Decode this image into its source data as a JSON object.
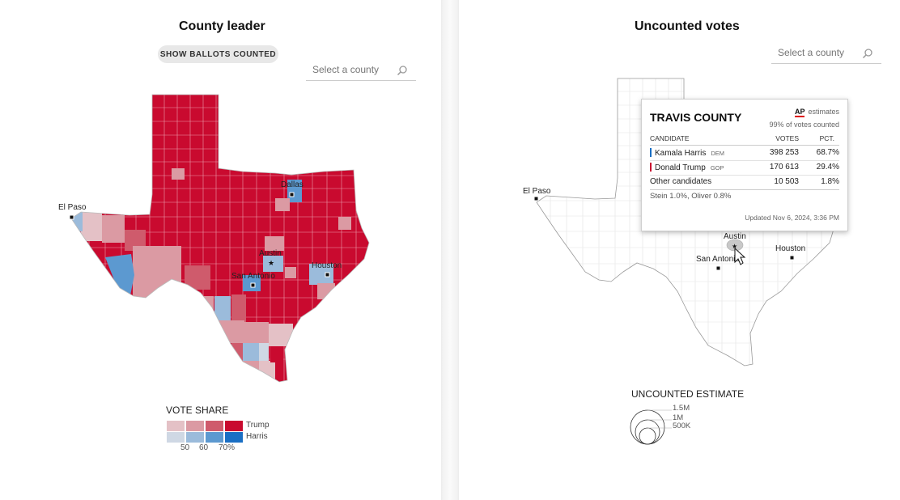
{
  "left": {
    "title": "County leader",
    "show_ballots_button": "SHOW BALLOTS COUNTED",
    "search_placeholder": "Select a county",
    "cities": {
      "el_paso": "El Paso",
      "dallas": "Dallas",
      "austin": "Austin",
      "houston": "Houston",
      "san_antonio": "San Antonio"
    },
    "legend": {
      "title": "VOTE SHARE",
      "trump_label": "Trump",
      "harris_label": "Harris",
      "trump_colors": [
        "#e4c1c6",
        "#db9aa3",
        "#cf5b6c",
        "#c90a2f"
      ],
      "harris_colors": [
        "#cfd8e4",
        "#9bbbdb",
        "#5c99d0",
        "#1a6fc4"
      ],
      "ticks": [
        "50",
        "60",
        "70%"
      ]
    }
  },
  "right": {
    "title": "Uncounted votes",
    "search_placeholder": "Select a county",
    "cities": {
      "el_paso": "El Paso",
      "austin": "Austin",
      "houston": "Houston",
      "san_antonio": "San Antonio"
    },
    "tooltip": {
      "county": "TRAVIS COUNTY",
      "ap_logo": "AP",
      "ap_label": "estimates",
      "pct_counted": "99% of votes counted",
      "headers": {
        "candidate": "CANDIDATE",
        "votes": "VOTES",
        "pct": "PCT."
      },
      "rows": [
        {
          "name": "Kamala Harris",
          "party": "DEM",
          "votes": "398 253",
          "pct": "68.7%",
          "color": "#1a6fc4"
        },
        {
          "name": "Donald Trump",
          "party": "GOP",
          "votes": "170 613",
          "pct": "29.4%",
          "color": "#c90a2f"
        },
        {
          "name": "Other candidates",
          "party": "",
          "votes": "10 503",
          "pct": "1.8%",
          "color": ""
        }
      ],
      "other_detail": "Stein 1.0%, Oliver 0.8%",
      "updated": "Updated Nov 6, 2024, 3:36 PM"
    },
    "uncounted_legend": {
      "title": "UNCOUNTED ESTIMATE",
      "labels": [
        "1.5M",
        "1M",
        "500K"
      ]
    }
  }
}
